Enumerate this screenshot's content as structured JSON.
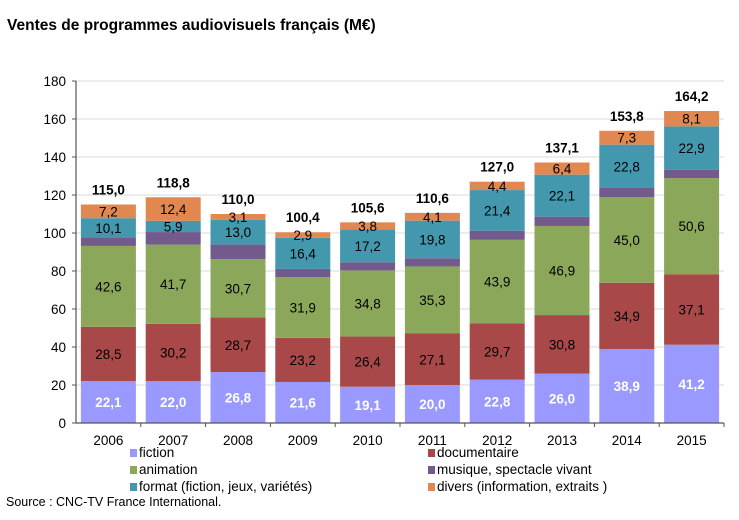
{
  "chart_data": {
    "type": "bar",
    "stacked": true,
    "title": "Ventes de programmes audiovisuels français (M€)",
    "xlabel": "",
    "ylabel": "",
    "ylim": [
      0,
      180
    ],
    "yticks": [
      0,
      20,
      40,
      60,
      80,
      100,
      120,
      140,
      160,
      180
    ],
    "grid": true,
    "legend_position": "bottom",
    "categories": [
      "2006",
      "2007",
      "2008",
      "2009",
      "2010",
      "2011",
      "2012",
      "2013",
      "2014",
      "2015"
    ],
    "series": [
      {
        "name": "fiction",
        "color": "#9999FF",
        "label_color": "#FFFFFF",
        "labeled": true,
        "values": [
          22.1,
          22.0,
          26.8,
          21.6,
          19.1,
          20.0,
          22.8,
          26.0,
          38.9,
          41.2
        ],
        "labels": [
          "22,1",
          "22,0",
          "26,8",
          "21,6",
          "19,1",
          "20,0",
          "22,8",
          "26,0",
          "38,9",
          "41,2"
        ]
      },
      {
        "name": "documentaire",
        "color": "#A84848",
        "label_color": "#000000",
        "labeled": true,
        "values": [
          28.5,
          30.2,
          28.7,
          23.2,
          26.4,
          27.1,
          29.7,
          30.8,
          34.9,
          37.1
        ],
        "labels": [
          "28,5",
          "30,2",
          "28,7",
          "23,2",
          "26,4",
          "27,1",
          "29,7",
          "30,8",
          "34,9",
          "37,1"
        ]
      },
      {
        "name": "animation",
        "color": "#8BA85A",
        "label_color": "#000000",
        "labeled": true,
        "values": [
          42.6,
          41.7,
          30.7,
          31.9,
          34.8,
          35.3,
          43.9,
          46.9,
          45.0,
          50.6
        ],
        "labels": [
          "42,6",
          "41,7",
          "30,7",
          "31,9",
          "34,8",
          "35,3",
          "43,9",
          "46,9",
          "45,0",
          "50,6"
        ]
      },
      {
        "name": "musique, spectacle vivant",
        "color": "#735A8C",
        "label_color": "#000000",
        "labeled": false,
        "values": [
          4.5,
          6.6,
          7.7,
          4.4,
          4.3,
          4.3,
          4.8,
          4.9,
          4.9,
          4.3
        ],
        "labels": [
          "",
          "",
          "",
          "",
          "",
          "",
          "",
          "",
          "",
          ""
        ]
      },
      {
        "name": "format (fiction, jeux, variétés)",
        "color": "#4398AE",
        "label_color": "#000000",
        "labeled": true,
        "values": [
          10.1,
          5.9,
          13.0,
          16.4,
          17.2,
          19.8,
          21.4,
          22.1,
          22.8,
          22.9
        ],
        "labels": [
          "10,1",
          "5,9",
          "13,0",
          "16,4",
          "17,2",
          "19,8",
          "21,4",
          "22,1",
          "22,8",
          "22,9"
        ]
      },
      {
        "name": "divers (information, extraits    )",
        "color": "#E08850",
        "label_color": "#000000",
        "labeled": true,
        "values": [
          7.2,
          12.4,
          3.1,
          2.9,
          3.8,
          4.1,
          4.4,
          6.4,
          7.3,
          8.1
        ],
        "labels": [
          "7,2",
          "12,4",
          "3,1",
          "2,9",
          "3,8",
          "4,1",
          "4,4",
          "6,4",
          "7,3",
          "8,1"
        ]
      }
    ],
    "totals": [
      115.0,
      118.8,
      110.0,
      100.4,
      105.6,
      110.6,
      127.0,
      137.1,
      153.8,
      164.2
    ],
    "total_labels": [
      "115,0",
      "118,8",
      "110,0",
      "100,4",
      "105,6",
      "110,6",
      "127,0",
      "137,1",
      "153,8",
      "164,2"
    ],
    "source": "Source : CNC-TV France International."
  }
}
